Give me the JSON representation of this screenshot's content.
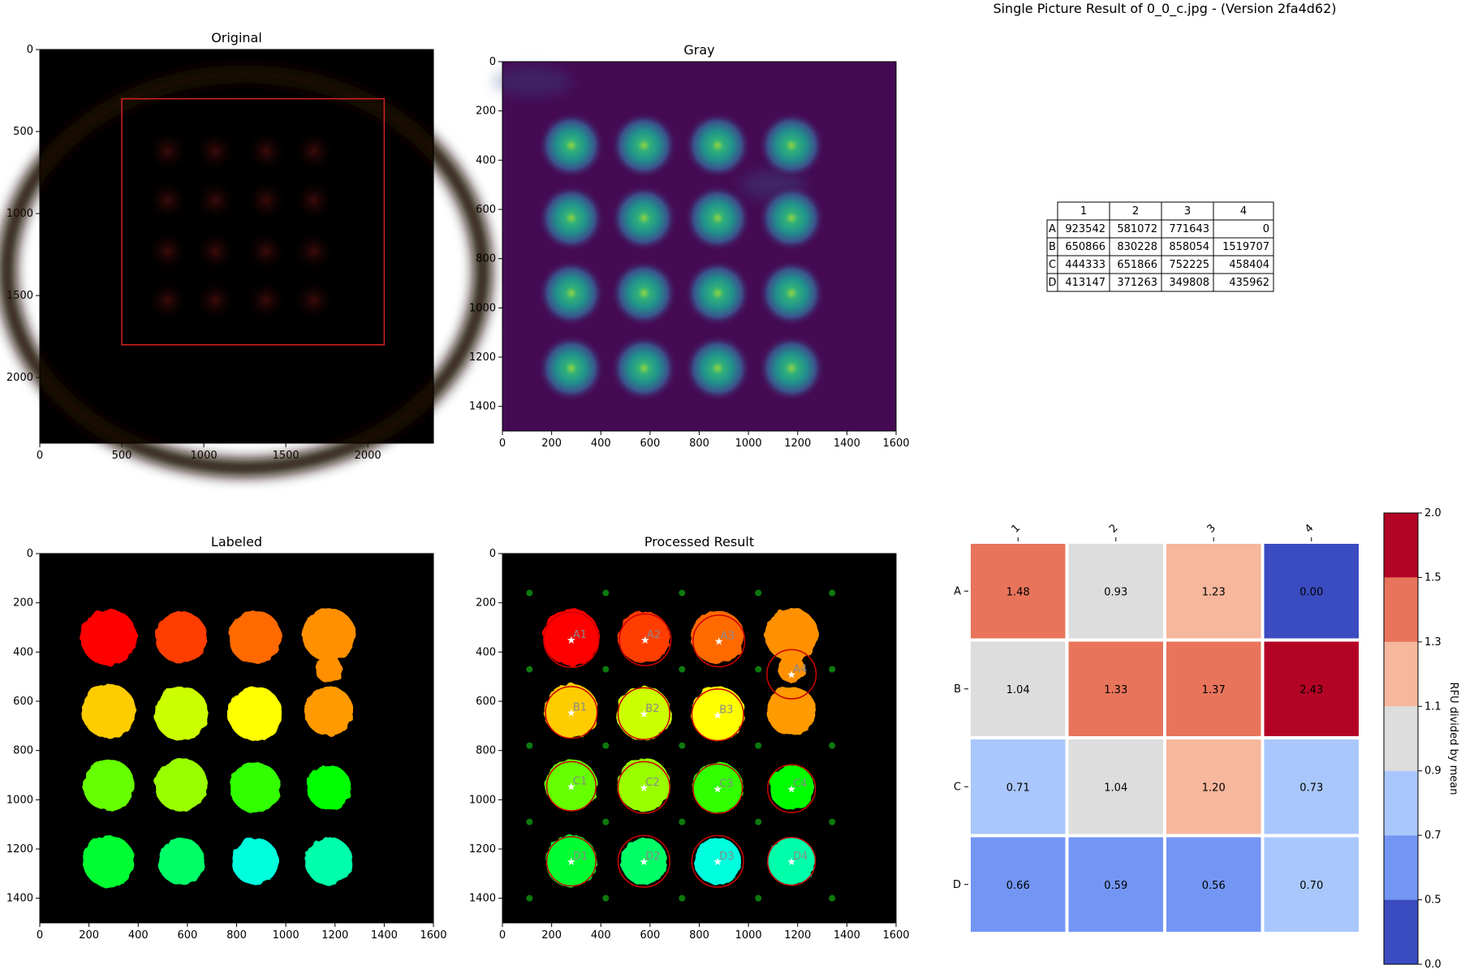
{
  "figure_title": "Single Picture Result of 0_0_c.jpg - (Version 2fa4d62)",
  "chart_data": [
    {
      "type": "image",
      "title": "Original",
      "xlim": [
        0,
        2400
      ],
      "ylim": [
        2400,
        0
      ],
      "xticks": [
        0,
        500,
        1000,
        1500,
        2000
      ],
      "yticks": [
        0,
        500,
        1000,
        1500,
        2000
      ],
      "roi_rect": {
        "x": [
          500,
          2100
        ],
        "y": [
          300,
          1800
        ],
        "color": "#d62020"
      },
      "spot_grid": {
        "x": [
          780,
          1070,
          1380,
          1670
        ],
        "y": [
          620,
          920,
          1230,
          1530
        ],
        "color": "#3a0808"
      }
    },
    {
      "type": "image",
      "title": "Gray",
      "xlim": [
        0,
        1600
      ],
      "ylim": [
        1500,
        0
      ],
      "xticks": [
        0,
        200,
        400,
        600,
        800,
        1000,
        1200,
        1400,
        1600
      ],
      "yticks": [
        0,
        200,
        400,
        600,
        800,
        1000,
        1200,
        1400
      ],
      "background": "#440b54",
      "spot_grid": {
        "x": [
          280,
          575,
          875,
          1175
        ],
        "y": [
          340,
          635,
          940,
          1245
        ]
      }
    },
    {
      "type": "image",
      "title": "Labeled",
      "xlim": [
        0,
        1600
      ],
      "ylim": [
        1500,
        0
      ],
      "xticks": [
        0,
        200,
        400,
        600,
        800,
        1000,
        1200,
        1400,
        1600
      ],
      "yticks": [
        0,
        200,
        400,
        600,
        800,
        1000,
        1200,
        1400
      ],
      "labels": [
        {
          "x": 280,
          "y": 340,
          "r": 115,
          "color": "#ff0000"
        },
        {
          "x": 575,
          "y": 340,
          "r": 105,
          "color": "#ff3c00"
        },
        {
          "x": 875,
          "y": 340,
          "r": 108,
          "color": "#ff6a00"
        },
        {
          "x": 1175,
          "y": 330,
          "r": 108,
          "color": "#ff9000"
        },
        {
          "x": 1175,
          "y": 470,
          "r": 55,
          "color": "#ff9000"
        },
        {
          "x": 280,
          "y": 640,
          "r": 110,
          "color": "#ffcc00"
        },
        {
          "x": 575,
          "y": 650,
          "r": 110,
          "color": "#ccff00"
        },
        {
          "x": 875,
          "y": 650,
          "r": 110,
          "color": "#ffff00"
        },
        {
          "x": 1175,
          "y": 640,
          "r": 100,
          "color": "#ff9a00"
        },
        {
          "x": 280,
          "y": 940,
          "r": 105,
          "color": "#66ff00"
        },
        {
          "x": 575,
          "y": 940,
          "r": 108,
          "color": "#99ff00"
        },
        {
          "x": 875,
          "y": 950,
          "r": 103,
          "color": "#33ff00"
        },
        {
          "x": 1175,
          "y": 950,
          "r": 90,
          "color": "#00ff00"
        },
        {
          "x": 280,
          "y": 1250,
          "r": 105,
          "color": "#00ff33"
        },
        {
          "x": 575,
          "y": 1250,
          "r": 95,
          "color": "#00ff66"
        },
        {
          "x": 875,
          "y": 1250,
          "r": 95,
          "color": "#00ffdd"
        },
        {
          "x": 1175,
          "y": 1250,
          "r": 97,
          "color": "#00ffaa"
        }
      ]
    },
    {
      "type": "image",
      "title": "Processed Result",
      "xlim": [
        0,
        1600
      ],
      "ylim": [
        1500,
        0
      ],
      "xticks": [
        0,
        200,
        400,
        600,
        800,
        1000,
        1200,
        1400,
        1600
      ],
      "yticks": [
        0,
        200,
        400,
        600,
        800,
        1000,
        1200,
        1400
      ],
      "grid_dots": {
        "x": [
          110,
          420,
          730,
          1040,
          1340
        ],
        "y": [
          160,
          470,
          780,
          1090,
          1400
        ],
        "color": "#0d7a0d"
      },
      "wells": [
        {
          "label": "A1",
          "x": 280,
          "y": 350,
          "r": 112
        },
        {
          "label": "A2",
          "x": 580,
          "y": 350,
          "r": 105
        },
        {
          "label": "A3",
          "x": 880,
          "y": 355,
          "r": 105
        },
        {
          "label": "A4",
          "x": 1175,
          "y": 490,
          "r": 100
        },
        {
          "label": "B1",
          "x": 280,
          "y": 645,
          "r": 105
        },
        {
          "label": "B2",
          "x": 575,
          "y": 650,
          "r": 105
        },
        {
          "label": "B3",
          "x": 875,
          "y": 655,
          "r": 105
        },
        {
          "label": "C1",
          "x": 280,
          "y": 945,
          "r": 100
        },
        {
          "label": "C2",
          "x": 575,
          "y": 950,
          "r": 105
        },
        {
          "label": "C3",
          "x": 875,
          "y": 955,
          "r": 100
        },
        {
          "label": "C4",
          "x": 1175,
          "y": 955,
          "r": 97
        },
        {
          "label": "D1",
          "x": 280,
          "y": 1250,
          "r": 100
        },
        {
          "label": "D2",
          "x": 575,
          "y": 1250,
          "r": 105
        },
        {
          "label": "D3",
          "x": 875,
          "y": 1250,
          "r": 105
        },
        {
          "label": "D4",
          "x": 1175,
          "y": 1250,
          "r": 97
        }
      ],
      "circle_color": "#cc0000"
    },
    {
      "type": "table",
      "columns": [
        "1",
        "2",
        "3",
        "4"
      ],
      "rows": [
        {
          "label": "A",
          "values": [
            "923542",
            "581072",
            "771643",
            "0"
          ]
        },
        {
          "label": "B",
          "values": [
            "650866",
            "830228",
            "858054",
            "1519707"
          ]
        },
        {
          "label": "C",
          "values": [
            "444333",
            "651866",
            "752225",
            "458404"
          ]
        },
        {
          "label": "D",
          "values": [
            "413147",
            "371263",
            "349808",
            "435962"
          ]
        }
      ]
    },
    {
      "type": "heatmap",
      "columns": [
        "1",
        "2",
        "3",
        "4"
      ],
      "rows": [
        "A",
        "B",
        "C",
        "D"
      ],
      "values": [
        [
          1.48,
          0.93,
          1.23,
          0.0
        ],
        [
          1.04,
          1.33,
          1.37,
          2.43
        ],
        [
          0.71,
          1.04,
          1.2,
          0.73
        ],
        [
          0.66,
          0.59,
          0.56,
          0.7
        ]
      ],
      "value_labels": [
        [
          "1.48",
          "0.93",
          "1.23",
          "0.00"
        ],
        [
          "1.04",
          "1.33",
          "1.37",
          "2.43"
        ],
        [
          "0.71",
          "1.04",
          "1.20",
          "0.73"
        ],
        [
          "0.66",
          "0.59",
          "0.56",
          "0.70"
        ]
      ],
      "colorbar": {
        "label": "RFU divided by mean",
        "bounds": [
          0.0,
          0.5,
          0.7,
          0.9,
          1.1,
          1.3,
          1.5,
          2.0
        ],
        "tick_labels": [
          "0.0",
          "0.5",
          "0.7",
          "0.9",
          "1.1",
          "1.3",
          "1.5",
          "2.0"
        ],
        "colors": [
          "#3b4cc0",
          "#7396f5",
          "#aac7fd",
          "#dddddd",
          "#f6b79c",
          "#e7745b",
          "#b40426"
        ]
      }
    }
  ]
}
